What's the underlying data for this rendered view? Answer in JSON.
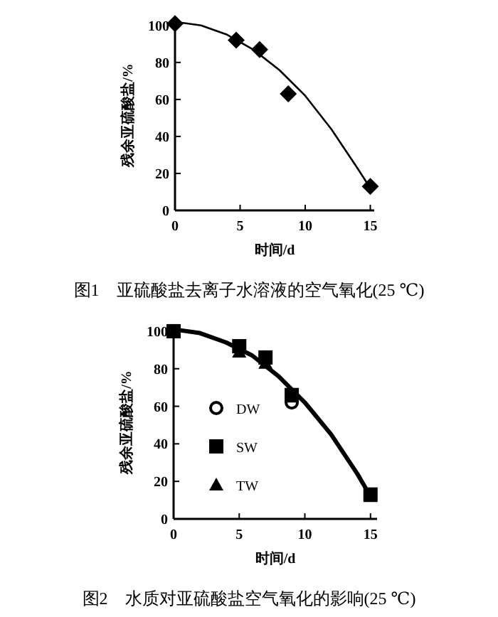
{
  "chart_data": [
    {
      "type": "scatter",
      "title": "图1　亚硫酸盐去离子水溶液的空气氧化(25 ℃)",
      "xlabel": "时间/d",
      "ylabel": "残余亚硫酸盐/%",
      "xlim": [
        0,
        15.3
      ],
      "ylim": [
        0,
        103
      ],
      "xticks": [
        0,
        5,
        10,
        15
      ],
      "yticks": [
        0,
        20,
        40,
        60,
        80,
        100
      ],
      "legend": false,
      "grid": false,
      "series": [
        {
          "color": "#000000",
          "marker": "diamond",
          "x": [
            0,
            4.7,
            6.5,
            8.7,
            15
          ],
          "values": [
            101,
            92,
            87,
            63,
            13
          ]
        },
        {
          "type": "line",
          "color": "#000000",
          "marker": "none",
          "x": [
            0,
            2,
            4,
            6,
            8,
            10,
            12,
            14,
            15
          ],
          "values": [
            102,
            100,
            95,
            87,
            76,
            62,
            44,
            23,
            12
          ]
        }
      ]
    },
    {
      "type": "scatter",
      "title": "图2　水质对亚硫酸盐空气氧化的影响(25 ℃)",
      "xlabel": "时间/d",
      "ylabel": "残余亚硫酸盐/%",
      "xlim": [
        0,
        15.5
      ],
      "ylim": [
        0,
        103
      ],
      "xticks": [
        0,
        5,
        10,
        15
      ],
      "yticks": [
        0,
        20,
        40,
        60,
        80,
        100
      ],
      "legend": "left",
      "grid": false,
      "series": [
        {
          "type": "line",
          "color": "#000000",
          "marker": "none",
          "x": [
            0,
            2,
            4,
            6,
            8,
            10,
            12,
            14,
            15
          ],
          "values": [
            101,
            99,
            94,
            87,
            76,
            62,
            45,
            24,
            12
          ]
        },
        {
          "name": "DW",
          "color": "#000000",
          "marker": "circle",
          "x": [
            9
          ],
          "values": [
            62
          ]
        },
        {
          "name": "SW",
          "color": "#000000",
          "marker": "square",
          "x": [
            0,
            5,
            7,
            9,
            15
          ],
          "values": [
            100,
            92,
            86,
            66,
            13
          ]
        },
        {
          "name": "TW",
          "color": "#000000",
          "marker": "triangle",
          "x": [
            5,
            7,
            9,
            15
          ],
          "values": [
            89,
            83,
            65,
            12
          ]
        }
      ]
    }
  ]
}
